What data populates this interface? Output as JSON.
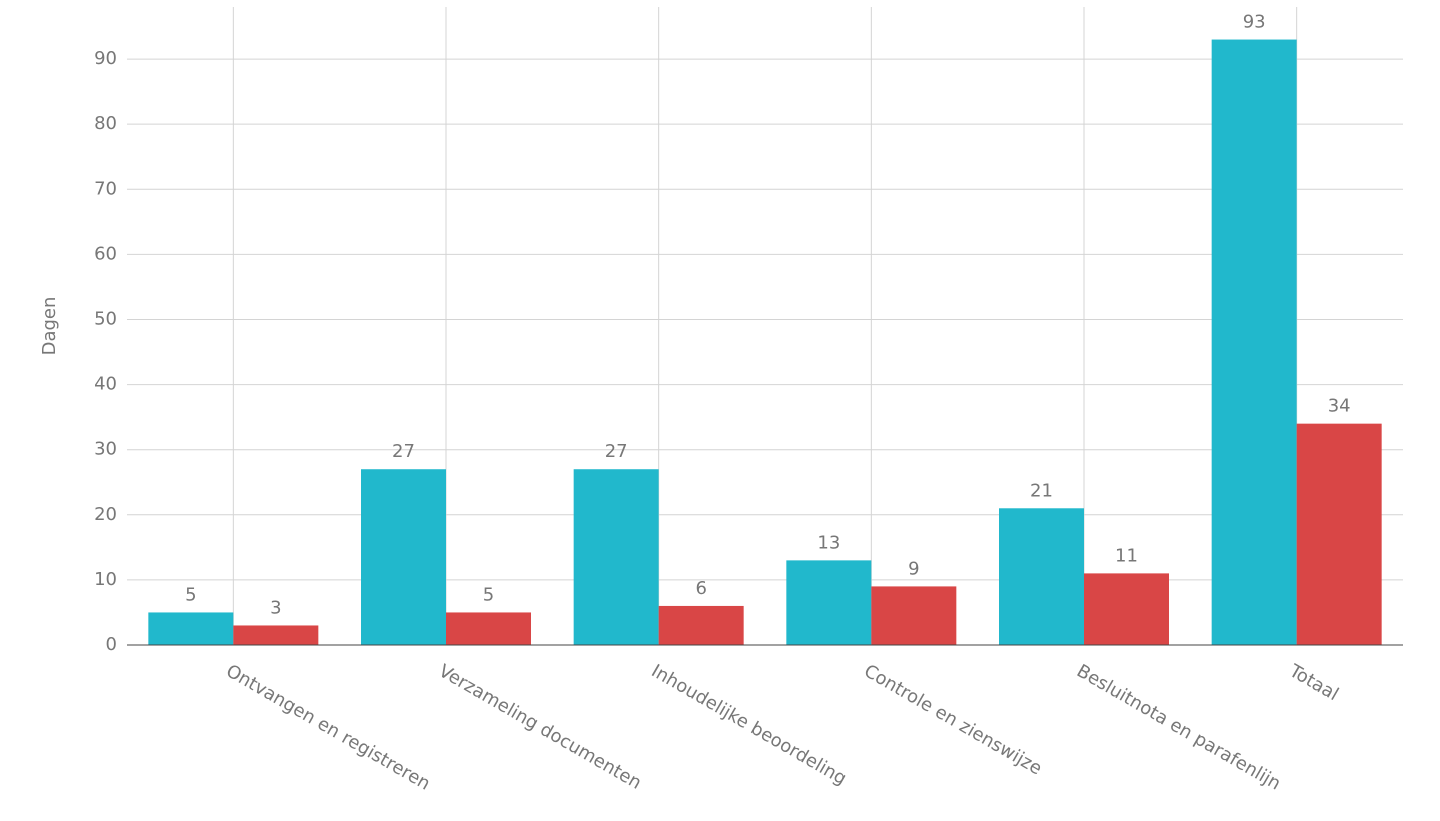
{
  "chart_data": {
    "type": "grouped-bar",
    "y_label": "Dagen",
    "categories": [
      "Ontvangen en registreren",
      "Verzameling documenten",
      "Inhoudelijke beoordeling",
      "Controle en zienswijze",
      "Besluitnota en parafenlijn",
      "Totaal"
    ],
    "series": [
      {
        "color": "#21b8cc",
        "values": [
          5,
          27,
          27,
          13,
          21,
          93
        ]
      },
      {
        "color": "#d94646",
        "values": [
          3,
          5,
          6,
          9,
          11,
          34
        ]
      }
    ],
    "ylim": [
      0,
      98
    ],
    "yticks": [
      0,
      10,
      20,
      30,
      40,
      50,
      60,
      70,
      80,
      90
    ],
    "grid": true
  }
}
